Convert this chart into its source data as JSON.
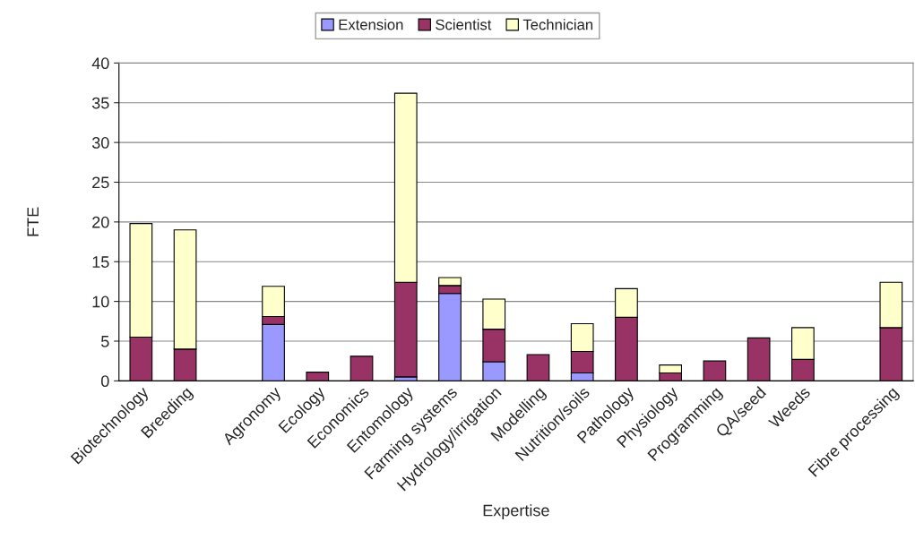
{
  "chart_data": {
    "type": "bar",
    "stacked": true,
    "xlabel": "Expertise",
    "ylabel": "FTE",
    "categories": [
      "Biotechnology",
      "Breeding",
      null,
      "Agronomy",
      "Ecology",
      "Economics",
      "Entomology",
      "Farming systems",
      "Hydrology/irrigation",
      "Modelling",
      "Nutrition/soils",
      "Pathology",
      "Physiology",
      "Programming",
      "QA/seed",
      "Weeds",
      null,
      "Fibre processing"
    ],
    "series": [
      {
        "name": "Extension",
        "color": "#9999ff",
        "values": [
          null,
          null,
          null,
          7.1,
          null,
          null,
          0.5,
          11.0,
          2.4,
          null,
          1.0,
          null,
          null,
          null,
          null,
          null,
          null,
          null
        ]
      },
      {
        "name": "Scientist",
        "color": "#993366",
        "values": [
          5.5,
          4.0,
          null,
          1.0,
          1.1,
          3.1,
          11.9,
          1.0,
          4.1,
          3.3,
          2.7,
          8.0,
          1.0,
          2.5,
          5.4,
          2.7,
          null,
          6.7
        ]
      },
      {
        "name": "Technician",
        "color": "#ffffcc",
        "values": [
          14.3,
          15.0,
          null,
          3.8,
          null,
          null,
          23.8,
          1.0,
          3.8,
          null,
          3.5,
          3.6,
          1.0,
          null,
          null,
          4.0,
          null,
          5.7
        ]
      }
    ],
    "ylim": [
      0,
      40
    ],
    "yticks": [
      0,
      5,
      10,
      15,
      20,
      25,
      30,
      35,
      40
    ],
    "grid": "y",
    "legend": "top"
  }
}
